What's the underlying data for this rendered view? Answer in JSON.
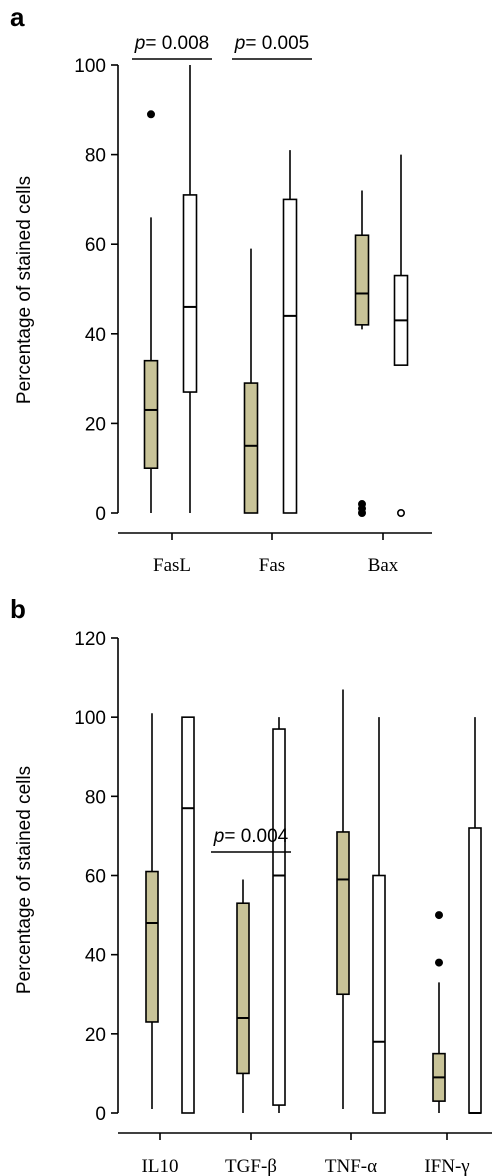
{
  "panels": [
    {
      "label": "a",
      "ylabel": "Percentage of stained cells",
      "yticks": [
        0,
        20,
        40,
        60,
        80,
        100
      ],
      "ylim": [
        0,
        100
      ],
      "categories": [
        "FasL",
        "Fas",
        "Bax"
      ],
      "pvalues": [
        {
          "category_index": 0,
          "text_prefix": "p",
          "text_rest": "= 0.008"
        },
        {
          "category_index": 1,
          "text_prefix": "p",
          "text_rest": "= 0.005"
        }
      ]
    },
    {
      "label": "b",
      "ylabel": "Percentage of stained cells",
      "yticks": [
        0,
        20,
        40,
        60,
        80,
        100,
        120
      ],
      "ylim": [
        0,
        120
      ],
      "categories": [
        "IL10",
        "TGF-β",
        "TNF-α",
        "IFN-γ"
      ],
      "pvalues": [
        {
          "category_index": 1,
          "text_prefix": "p",
          "text_rest": "= 0.004"
        }
      ]
    }
  ],
  "colors": {
    "filled_box": "#c8c398",
    "open_box": "#ffffff",
    "stroke": "#000000"
  },
  "chart_data": [
    {
      "type": "box",
      "ylabel": "Percentage of stained cells",
      "ylim": [
        0,
        100
      ],
      "categories": [
        "FasL",
        "Fas",
        "Bax"
      ],
      "series": [
        {
          "style": "filled",
          "boxes": [
            {
              "min": 0,
              "q1": 10,
              "median": 23,
              "q3": 34,
              "max": 66,
              "outliers": [
                89
              ]
            },
            {
              "min": 0,
              "q1": 0,
              "median": 15,
              "q3": 29,
              "max": 59,
              "outliers": []
            },
            {
              "min": 41,
              "q1": 42,
              "median": 49,
              "q3": 62,
              "max": 72,
              "outliers": [
                0,
                1,
                2
              ]
            }
          ]
        },
        {
          "style": "open",
          "boxes": [
            {
              "min": 0,
              "q1": 27,
              "median": 46,
              "q3": 71,
              "max": 100,
              "outliers": []
            },
            {
              "min": 0,
              "q1": 0,
              "median": 44,
              "q3": 70,
              "max": 81,
              "outliers": []
            },
            {
              "min": 33,
              "q1": 33,
              "median": 43,
              "q3": 53,
              "max": 80,
              "outliers": [
                0
              ]
            }
          ]
        }
      ]
    },
    {
      "type": "box",
      "ylabel": "Percentage of stained cells",
      "ylim": [
        0,
        120
      ],
      "categories": [
        "IL10",
        "TGF-β",
        "TNF-α",
        "IFN-γ"
      ],
      "series": [
        {
          "style": "filled",
          "boxes": [
            {
              "min": 1,
              "q1": 23,
              "median": 48,
              "q3": 61,
              "max": 101,
              "outliers": []
            },
            {
              "min": 0,
              "q1": 10,
              "median": 24,
              "q3": 53,
              "max": 59,
              "outliers": []
            },
            {
              "min": 1,
              "q1": 30,
              "median": 59,
              "q3": 71,
              "max": 107,
              "outliers": []
            },
            {
              "min": 0,
              "q1": 3,
              "median": 9,
              "q3": 15,
              "max": 33,
              "outliers": [
                38,
                50
              ]
            }
          ]
        },
        {
          "style": "open",
          "boxes": [
            {
              "min": 0,
              "q1": 0,
              "median": 77,
              "q3": 100,
              "max": 100,
              "outliers": []
            },
            {
              "min": 0,
              "q1": 2,
              "median": 60,
              "q3": 97,
              "max": 100,
              "outliers": []
            },
            {
              "min": 0,
              "q1": 0,
              "median": 18,
              "q3": 60,
              "max": 100,
              "outliers": []
            },
            {
              "min": 0,
              "q1": 0,
              "median": 0,
              "q3": 72,
              "max": 100,
              "outliers": []
            }
          ]
        }
      ]
    }
  ]
}
